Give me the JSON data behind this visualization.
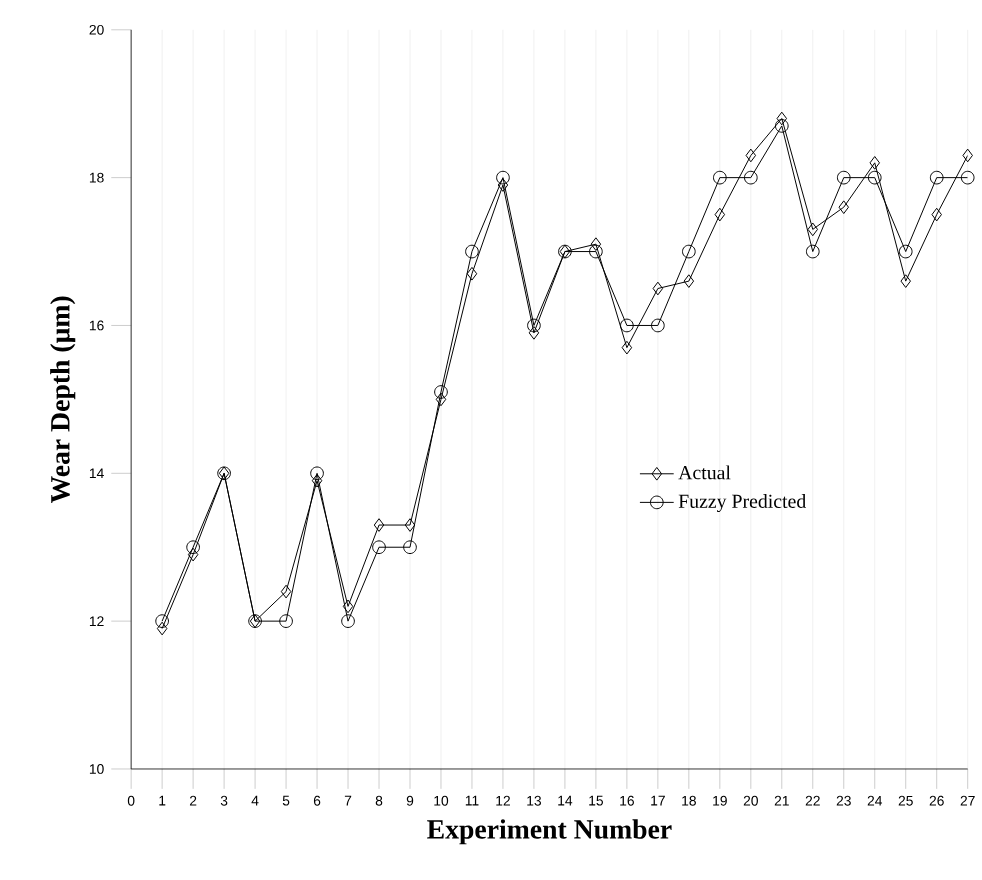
{
  "chart_data": {
    "type": "line",
    "xlabel": "Experiment Number",
    "ylabel": "Wear Depth (μm)",
    "x": [
      1,
      2,
      3,
      4,
      5,
      6,
      7,
      8,
      9,
      10,
      11,
      12,
      13,
      14,
      15,
      16,
      17,
      18,
      19,
      20,
      21,
      22,
      23,
      24,
      25,
      26,
      27
    ],
    "series": [
      {
        "name": "Actual",
        "color": "#000000",
        "marker": "diamond",
        "values": [
          11.9,
          12.9,
          14,
          12,
          12.4,
          13.9,
          12.2,
          13.3,
          13.3,
          15,
          16.7,
          17.9,
          15.9,
          17,
          17.1,
          15.7,
          16.5,
          16.6,
          17.5,
          18.3,
          18.8,
          17.3,
          17.6,
          18.2,
          16.6,
          17.5,
          18.3
        ]
      },
      {
        "name": "Fuzzy Predicted",
        "color": "#000000",
        "marker": "circle",
        "values": [
          12,
          13,
          14,
          12,
          12,
          14,
          12,
          13,
          13,
          15.1,
          17,
          18,
          16,
          17,
          17,
          16,
          16,
          17,
          18,
          18,
          18.7,
          17,
          18,
          18,
          17,
          18,
          18
        ]
      }
    ],
    "xlim": [
      0,
      27
    ],
    "xticks": [
      0,
      1,
      2,
      3,
      4,
      5,
      6,
      7,
      8,
      9,
      10,
      11,
      12,
      13,
      14,
      15,
      16,
      17,
      18,
      19,
      20,
      21,
      22,
      23,
      24,
      25,
      26,
      27
    ],
    "ylim": [
      10,
      20
    ],
    "yticks": [
      10,
      12,
      14,
      16,
      18,
      20
    ],
    "grid": "x",
    "legend": "right",
    "line_style": "solid"
  }
}
